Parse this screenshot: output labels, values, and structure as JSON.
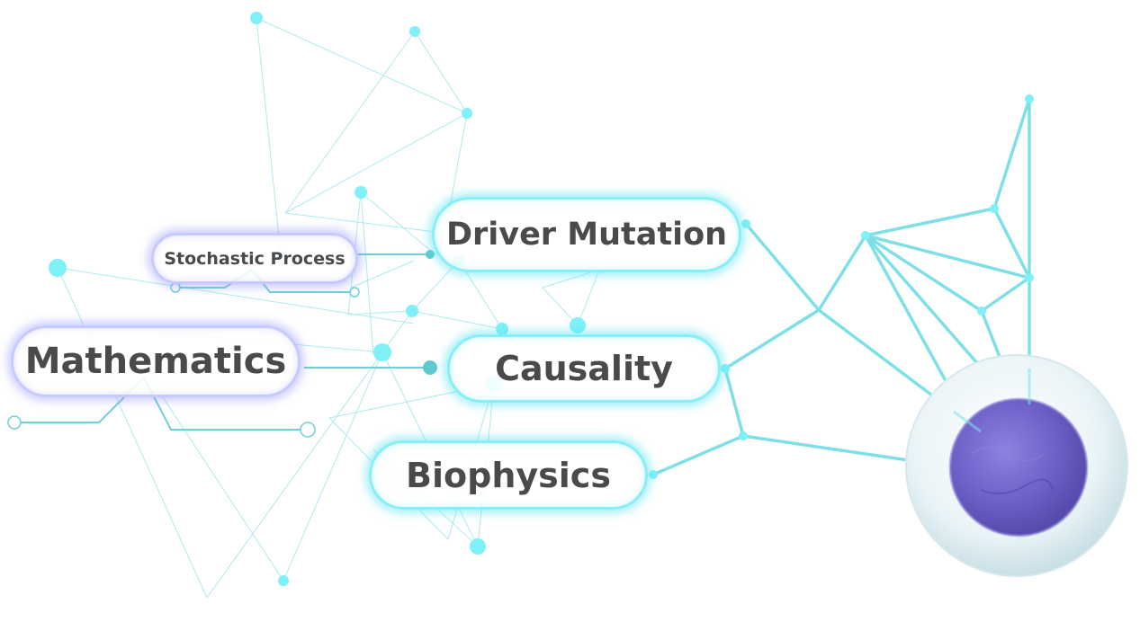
{
  "labels": {
    "stochastic": "Stochastic Process",
    "driver": "Driver Mutation",
    "math": "Mathematics",
    "causality": "Causality",
    "biophysics": "Biophysics"
  },
  "colors": {
    "line": "#7fdde4",
    "node": "#7ff0f8",
    "dark_node": "#5fc9cf",
    "cell_membrane": "#e6f1f4",
    "nucleus": "#6f63c9",
    "text": "#4a4a4d"
  },
  "icons": {
    "cell": "cell-icon",
    "network": "network-graph-icon"
  }
}
